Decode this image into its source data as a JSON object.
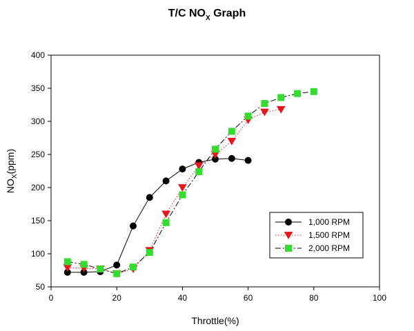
{
  "chart_data": {
    "type": "line",
    "title": {
      "main": "T/C NO",
      "sub": "X",
      "rest": " Graph"
    },
    "xlabel": "Throttle(%)",
    "ylabel": {
      "main": "NO",
      "sub": "X",
      "rest": "(ppm)"
    },
    "xlim": [
      0,
      100
    ],
    "ylim": [
      50,
      400
    ],
    "xticks": [
      0,
      20,
      40,
      60,
      80,
      100
    ],
    "yticks": [
      50,
      100,
      150,
      200,
      250,
      300,
      350,
      400
    ],
    "grid": false,
    "legend_position": "bottom-right",
    "series": [
      {
        "name": "1,000 RPM",
        "color": "#000000",
        "marker": "circle",
        "line_style": "solid",
        "x": [
          5,
          10,
          15,
          20,
          25,
          30,
          35,
          40,
          45,
          50,
          55,
          60
        ],
        "y": [
          72,
          72,
          73,
          83,
          142,
          185,
          210,
          228,
          238,
          243,
          244,
          241
        ]
      },
      {
        "name": "1,500 RPM",
        "color": "#e8161c",
        "marker": "triangle-down",
        "line_style": "dotted",
        "x": [
          5,
          10,
          15,
          20,
          25,
          30,
          35,
          40,
          45,
          50,
          55,
          60,
          65,
          70
        ],
        "y": [
          79,
          78,
          77,
          70,
          77,
          105,
          160,
          200,
          233,
          250,
          270,
          302,
          314,
          318
        ]
      },
      {
        "name": "2,000 RPM",
        "color": "#33dd2e",
        "marker": "square",
        "line_style": "dashdot",
        "x": [
          5,
          10,
          15,
          20,
          25,
          30,
          35,
          40,
          45,
          50,
          55,
          60,
          65,
          70,
          75,
          80
        ],
        "y": [
          88,
          84,
          77,
          70,
          80,
          102,
          147,
          189,
          224,
          258,
          285,
          308,
          327,
          336,
          342,
          345
        ]
      }
    ]
  }
}
